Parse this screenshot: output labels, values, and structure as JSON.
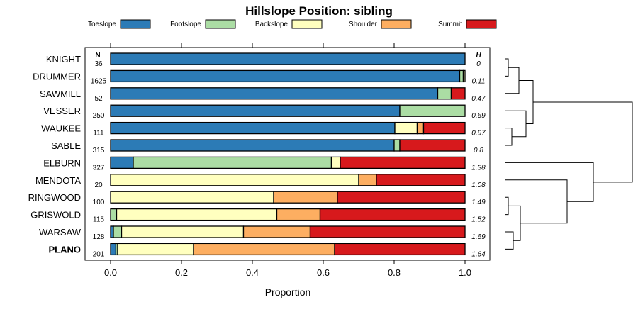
{
  "chart_data": {
    "type": "bar",
    "orientation": "horizontal-stacked",
    "title": "Hillslope Position: sibling",
    "xlabel": "Proportion",
    "xlim": [
      0,
      1
    ],
    "x_ticks": [
      "0.0",
      "0.2",
      "0.4",
      "0.6",
      "0.8",
      "1.0"
    ],
    "n_header": "N",
    "h_header": "H",
    "legend": [
      {
        "name": "Toeslope",
        "color": "#2c7bb6"
      },
      {
        "name": "Footslope",
        "color": "#abdda4"
      },
      {
        "name": "Backslope",
        "color": "#ffffbf"
      },
      {
        "name": "Shoulder",
        "color": "#fdae61"
      },
      {
        "name": "Summit",
        "color": "#d7191c"
      }
    ],
    "rows": [
      {
        "name": "KNIGHT",
        "n": "36",
        "h": "0",
        "bold": false,
        "values": [
          1.0,
          0,
          0,
          0,
          0
        ]
      },
      {
        "name": "DRUMMER",
        "n": "1625",
        "h": "0.11",
        "bold": false,
        "values": [
          0.985,
          0.01,
          0.005,
          0,
          0
        ]
      },
      {
        "name": "SAWMILL",
        "n": "52",
        "h": "0.47",
        "bold": false,
        "values": [
          0.923,
          0.038,
          0,
          0,
          0.039
        ]
      },
      {
        "name": "VESSER",
        "n": "250",
        "h": "0.69",
        "bold": false,
        "values": [
          0.816,
          0.184,
          0,
          0,
          0
        ]
      },
      {
        "name": "WAUKEE",
        "n": "111",
        "h": "0.97",
        "bold": false,
        "values": [
          0.802,
          0,
          0.063,
          0.018,
          0.117
        ]
      },
      {
        "name": "SABLE",
        "n": "315",
        "h": "0.8",
        "bold": false,
        "values": [
          0.8,
          0.016,
          0,
          0,
          0.184
        ]
      },
      {
        "name": "ELBURN",
        "n": "327",
        "h": "1.38",
        "bold": false,
        "values": [
          0.064,
          0.559,
          0.025,
          0,
          0.352
        ]
      },
      {
        "name": "MENDOTA",
        "n": "20",
        "h": "1.08",
        "bold": false,
        "values": [
          0,
          0,
          0.7,
          0.05,
          0.25
        ]
      },
      {
        "name": "RINGWOOD",
        "n": "100",
        "h": "1.49",
        "bold": false,
        "values": [
          0,
          0,
          0.46,
          0.18,
          0.36
        ]
      },
      {
        "name": "GRISWOLD",
        "n": "115",
        "h": "1.52",
        "bold": false,
        "values": [
          0,
          0.017,
          0.452,
          0.122,
          0.409
        ]
      },
      {
        "name": "WARSAW",
        "n": "128",
        "h": "1.69",
        "bold": false,
        "values": [
          0.008,
          0.023,
          0.344,
          0.188,
          0.437
        ]
      },
      {
        "name": "PLANO",
        "n": "201",
        "h": "1.64",
        "bold": true,
        "values": [
          0.015,
          0.005,
          0.214,
          0.398,
          0.368
        ]
      }
    ],
    "dendrogram": {
      "leaf_order": [
        "KNIGHT",
        "DRUMMER",
        "SAWMILL",
        "VESSER",
        "WAUKEE",
        "SABLE",
        "ELBURN",
        "MENDOTA",
        "RINGWOOD",
        "GRISWOLD",
        "WARSAW",
        "PLANO"
      ],
      "merges": [
        {
          "id": "a",
          "left": "KNIGHT",
          "right": "DRUMMER",
          "height": 0.05
        },
        {
          "id": "b",
          "left": "a",
          "right": "SAWMILL",
          "height": 0.2
        },
        {
          "id": "c",
          "left": "WAUKEE",
          "right": "SABLE",
          "height": 0.1
        },
        {
          "id": "d",
          "left": "VESSER",
          "right": "c",
          "height": 0.3
        },
        {
          "id": "e",
          "left": "b",
          "right": "d",
          "height": 0.4
        },
        {
          "id": "f",
          "left": "RINGWOOD",
          "right": "GRISWOLD",
          "height": 0.05
        },
        {
          "id": "g",
          "left": "WARSAW",
          "right": "PLANO",
          "height": 0.12
        },
        {
          "id": "h",
          "left": "f",
          "right": "g",
          "height": 0.22
        },
        {
          "id": "i",
          "left": "MENDOTA",
          "right": "h",
          "height": 0.88
        },
        {
          "id": "j",
          "left": "ELBURN",
          "right": "i",
          "height": 1.25
        },
        {
          "id": "k",
          "left": "e",
          "right": "j",
          "height": 1.8
        }
      ],
      "max_height": 1.8
    }
  }
}
